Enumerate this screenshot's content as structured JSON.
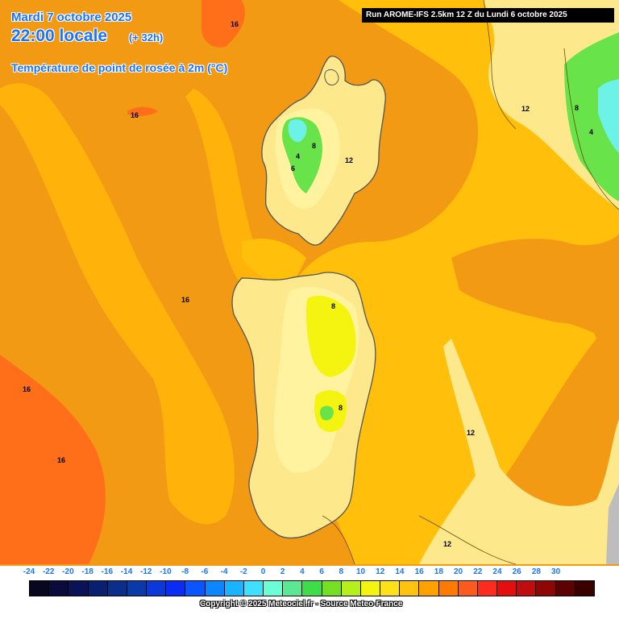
{
  "header": {
    "date": "Mardi 7 octobre 2025",
    "local_time": "22:00 locale",
    "lead_time": "(+ 32h)",
    "parameter": "Température de point de rosée à 2m (°C)",
    "run": "Run AROME-IFS 2.5km 12 Z du Lundi 6 octobre 2025"
  },
  "legend": {
    "values": [
      "-24",
      "-22",
      "-20",
      "-18",
      "-16",
      "-14",
      "-12",
      "-10",
      "-8",
      "-6",
      "-4",
      "-2",
      "0",
      "2",
      "4",
      "6",
      "8",
      "10",
      "12",
      "14",
      "16",
      "18",
      "20",
      "22",
      "24",
      "26",
      "28",
      "30"
    ],
    "colors": [
      "#070720",
      "#0b0b3b",
      "#0a1356",
      "#0a1f6e",
      "#0b2e8a",
      "#0a3aa8",
      "#0b38d8",
      "#0a2cf5",
      "#0a55ff",
      "#0b86ff",
      "#18b4ff",
      "#3ee0ff",
      "#6affd6",
      "#5be895",
      "#3fdc4a",
      "#74e021",
      "#b6f01c",
      "#f4f410",
      "#ffe11a",
      "#ffc20e",
      "#ffa100",
      "#ff7b00",
      "#ff5a1d",
      "#ff2b1f",
      "#e50e0e",
      "#bf0d0d",
      "#8e0606",
      "#5c0202",
      "#3a0000"
    ]
  },
  "map": {
    "isotherm_labels": [
      {
        "text": "16"
      },
      {
        "text": "16"
      },
      {
        "text": "16"
      },
      {
        "text": "12"
      },
      {
        "text": "8"
      },
      {
        "text": "4"
      },
      {
        "text": "16"
      },
      {
        "text": "16"
      },
      {
        "text": "8"
      },
      {
        "text": "8"
      },
      {
        "text": "12"
      },
      {
        "text": "12"
      },
      {
        "text": "4"
      },
      {
        "text": "6"
      },
      {
        "text": "8"
      },
      {
        "text": "12"
      },
      {
        "text": "16"
      }
    ],
    "colors": {
      "sea_orange": "#f39a14",
      "deep_orange": "#ff6f1a",
      "amber": "#ffbf0a",
      "light_yellow": "#fde98b",
      "pale_yellow": "#fff3a0",
      "yellow": "#f4f410",
      "green": "#69e34a",
      "cyan": "#6cf2e6",
      "grey": "#bdbdbd"
    }
  },
  "footer": {
    "copyright": "Copyright © 2025 Meteociel.fr - Source Meteo-France"
  }
}
